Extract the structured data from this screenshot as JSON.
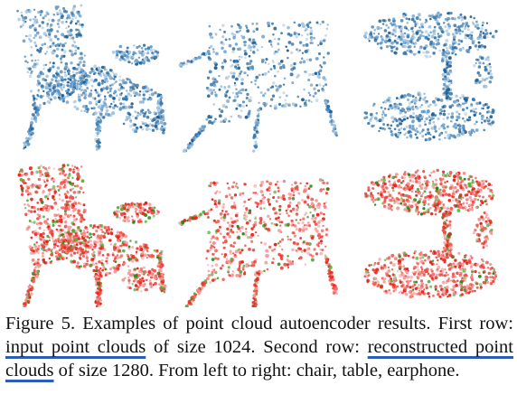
{
  "figure": {
    "rows": [
      {
        "name": "input point clouds",
        "colors": [
          "#1f5f94",
          "#3b7db3",
          "#6a9fcb",
          "#a8c6e0"
        ],
        "objects": [
          "chair",
          "table",
          "earphone"
        ]
      },
      {
        "name": "reconstructed point clouds",
        "colors": [
          "#e8231b",
          "#f0534a",
          "#f59a9a",
          "#1e8a12",
          "#4fb33c"
        ],
        "objects": [
          "chair",
          "table",
          "earphone"
        ]
      }
    ]
  },
  "caption": {
    "part1": "Figure 5. Examples of point cloud autoencoder results. First row: ",
    "highlight1": "input point clouds",
    "part2": " of size 1024. Second row: ",
    "highlight2": "reconstructed point clouds",
    "part3": " of size 1280. From left to right: chair, table, earphone.",
    "highlight_color": "#2d5db8"
  }
}
